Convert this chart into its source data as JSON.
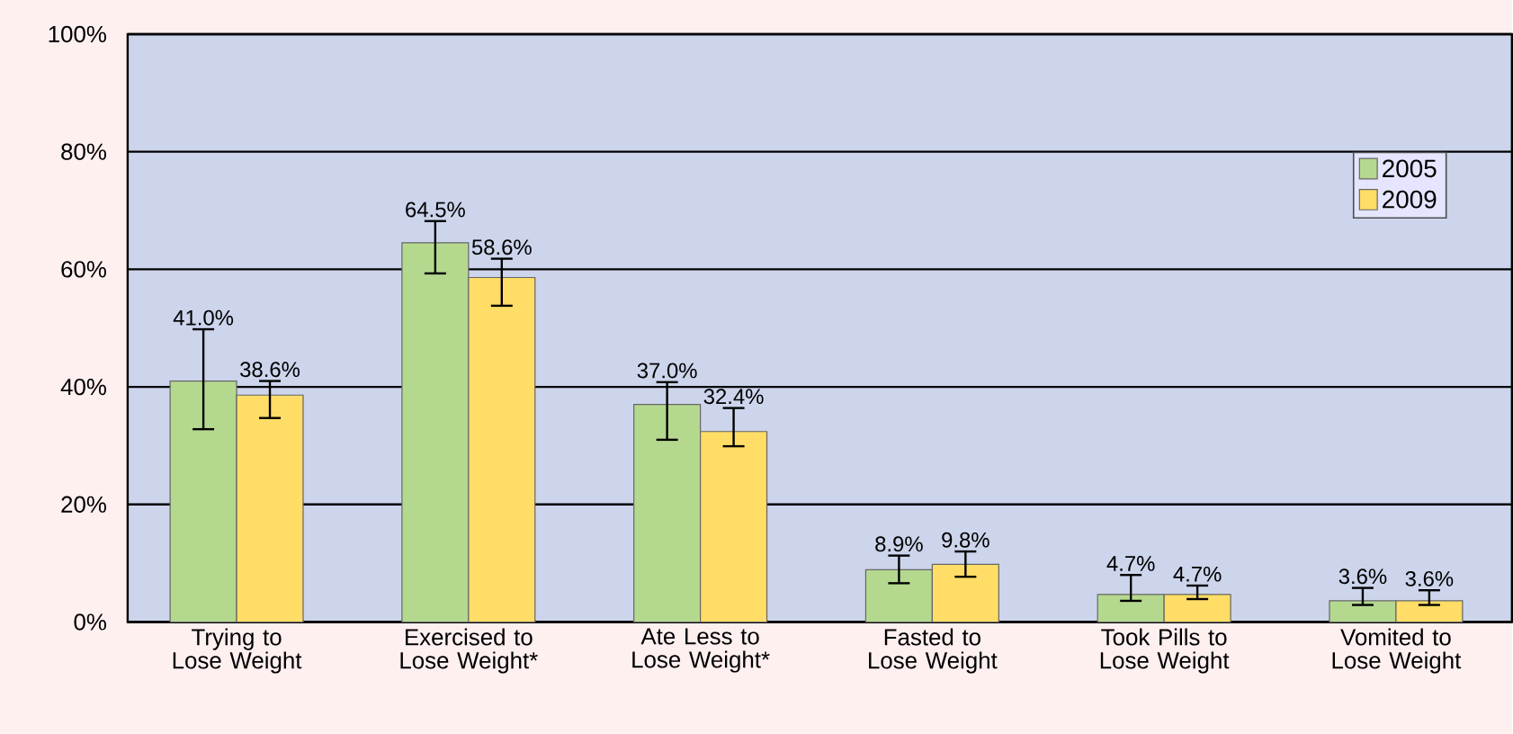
{
  "chart_data": {
    "type": "bar",
    "categories": [
      "Trying to Lose Weight",
      "Exercised to Lose Weight*",
      "Ate Less to Lose Weight*",
      "Fasted to Lose Weight",
      "Took Pills to Lose Weight",
      "Vomited to Lose Weight"
    ],
    "series": [
      {
        "name": "2005",
        "color": "#b5d88f",
        "values": [
          41.0,
          64.5,
          37.0,
          8.9,
          4.7,
          3.6
        ],
        "value_labels": [
          "41.0%",
          "64.5%",
          "37.0%",
          "8.9%",
          "4.7%",
          "3.6%"
        ],
        "errors": [
          [
            32.8,
            49.8
          ],
          [
            59.3,
            68.2
          ],
          [
            31.0,
            40.8
          ],
          [
            6.6,
            11.3
          ],
          [
            3.6,
            8.0
          ],
          [
            2.9,
            5.8
          ]
        ]
      },
      {
        "name": "2009",
        "color": "#ffdd66",
        "values": [
          38.6,
          58.6,
          32.4,
          9.8,
          4.7,
          3.6
        ],
        "value_labels": [
          "38.6%",
          "58.6%",
          "32.4%",
          "9.8%",
          "4.7%",
          "3.6%"
        ],
        "errors": [
          [
            34.7,
            41.0
          ],
          [
            53.8,
            61.8
          ],
          [
            29.9,
            36.4
          ],
          [
            7.7,
            12.0
          ],
          [
            3.9,
            6.2
          ],
          [
            2.9,
            5.4
          ]
        ]
      }
    ],
    "ylim": [
      0,
      100
    ],
    "yticks": [
      {
        "value": 0,
        "label": "0%"
      },
      {
        "value": 20,
        "label": "20%"
      },
      {
        "value": 40,
        "label": "40%"
      },
      {
        "value": 60,
        "label": "60%"
      },
      {
        "value": 80,
        "label": "80%"
      },
      {
        "value": 100,
        "label": "100%"
      }
    ],
    "grid": "y",
    "legend": "top right"
  }
}
